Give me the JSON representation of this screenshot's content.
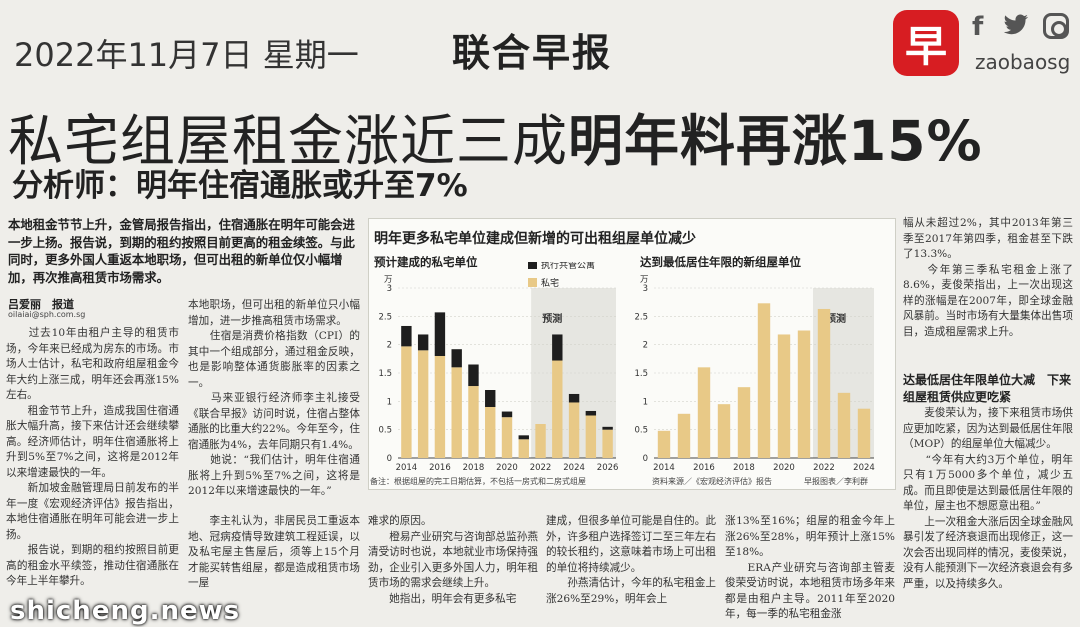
{
  "masthead": {
    "date": "2022年11月7日 星期一",
    "paper_name": "联合早报",
    "logo_char": "早",
    "handle": "zaobaosg",
    "social_icons": [
      "facebook-icon",
      "twitter-icon",
      "instagram-icon"
    ]
  },
  "headline": {
    "part1": "私宅组屋租金涨近三成",
    "part2": "明年料再涨15%",
    "subhead": "分析师：明年住宿通胀或升至7%"
  },
  "article": {
    "lead": "本地租金节节上升，金管局报告指出，住宿通胀在明年可能会进一步上扬。报告说，到期的租约按照目前更高的租金续签。与此同时，更多外国人重返本地职场，但可出租的新单位仅小幅增加，再次推高租赁市场需求。",
    "byline": "吕爱丽　报道",
    "email": "oilaiai@sph.com.sg",
    "col1": "　　过去10年由租户主导的租赁市场，今年来已经成为房东的市场。市场人士估计，私宅和政府组屋租金今年大约上涨三成，明年还会再涨15%左右。\n　　租金节节上升，造成我国住宿通胀大幅升高，接下来估计还会继续攀高。经济师估计，明年住宿通胀将上升到5%至7%之间，这将是2012年以来增速最快的一年。\n　　新加坡金融管理局日前发布的半年一度《宏观经济评估》报告指出，本地住宿通胀在明年可能会进一步上扬。\n　　报告说，到期的租约按照目前更高的租金水平续签，推动住宿通胀在今年上半年攀升。",
    "col2": "本地职场，但可出租的新单位只小幅增加，进一步推高租赁市场需求。\n　　住宿是消费价格指数（CPI）的其中一个组成部分，通过租金反映，也是影响整体通货膨胀率的因素之一。\n　　马来亚银行经济师李主礼接受《联合早报》访问时说，住宿占整体通胀的比重大约22%。今年至今，住宿通胀为4%，去年同期只有1.4%。\n　　她说：“我们估计，明年住宿通胀将上升到5%至7%之间，这将是2012年以来增速最快的一年。”",
    "col2b": "　　李主礼认为，非居民员工重返本地、冠病疫情导致建筑工程延误，以及私宅屋主售屋后，须等上15个月才能买转售组屋，都是造成租赁市场一屋",
    "col3": "难求的原因。\n　　橙易产业研究与咨询部总监孙燕清受访时也说，本地就业市场保持强劲，企业引入更多外国人力，明年租赁市场的需求会继续上升。\n　　她指出，明年会有更多私宅",
    "col4": "建成，但很多单位可能是自住的。此外，许多租户选择签订二至三年左右的较长租约，这意味着市场上可出租的单位将持续减少。\n　　孙燕清估计，今年的私宅租金上涨26%至29%，明年会上",
    "col5": "涨13%至16%；组屋的租金今年上涨26%至28%，明年预计上涨15%至18%。\n　　ERA产业研究与咨询部主管麦俊荣受访时说，本地租赁市场多年来都是由租户主导。2011年至2020年，每一季的私宅租金涨",
    "col6a": "幅从未超过2%，其中2013年第三季至2017年第四季，租金甚至下跌了13.3%。\n　　今年第三季私宅租金上涨了8.6%，麦俊荣指出，上一次出现这样的涨幅是在2007年，即全球金融风暴前。当时市场有大量集体出售项目，造成租屋需求上升。",
    "col6_heading": "达最低居住年限单位大减　下来组屋租赁供应更吃紧",
    "col6b": "　　麦俊荣认为，接下来租赁市场供应更加吃紧，因为达到最低居住年限（MOP）的组屋单位大幅减少。\n　　“今年有大约3万个单位，明年只有1万5000多个单位，减少五成。而且即使是达到最低居住年限的单位，屋主也不想愿意出租。”\n　　上一次租金大涨后因全球金融风暴引发了经济衰退而出现修正，这一次会否出现同样的情况，麦俊荣说，没有人能预测下一次经济衰退会有多严重，以及持续多久。"
  },
  "chart": {
    "title": "明年更多私宅单位建成但新增的可出租组屋单位减少",
    "note_left": "备注：根据组屋的完工日期估算，不包括一房式和二房式组屋",
    "source": "资料来源／《宏观经济评估》报告",
    "credit": "早报图表／李利群"
  },
  "chart_data": [
    {
      "type": "bar",
      "title": "预计建成的私宅单位",
      "ylabel_unit": "万",
      "ylim": [
        0,
        3
      ],
      "yticks": [
        0,
        0.5,
        1,
        1.5,
        2,
        2.5,
        3
      ],
      "xtick_labels": [
        "2014",
        "2016",
        "2018",
        "2020",
        "2022",
        "2024",
        "2026"
      ],
      "forecast_label": "预测",
      "forecast_from": "2022",
      "categories": [
        "2014",
        "2015",
        "2016",
        "2017",
        "2018",
        "2019",
        "2020",
        "2021",
        "2022",
        "2023",
        "2024",
        "2025",
        "2026"
      ],
      "series": [
        {
          "name": "私宅",
          "color": "#e8c987",
          "values": [
            1.97,
            1.9,
            1.8,
            1.6,
            1.27,
            0.9,
            0.72,
            0.33,
            0.6,
            1.72,
            0.98,
            0.75,
            0.5
          ]
        },
        {
          "name": "执行共管公寓",
          "color": "#1e1e1e",
          "values": [
            0.36,
            0.28,
            0.77,
            0.32,
            0.38,
            0.3,
            0.1,
            0.07,
            0.0,
            0.46,
            0.15,
            0.08,
            0.05
          ]
        }
      ]
    },
    {
      "type": "bar",
      "title": "达到最低居住年限的新组屋单位",
      "ylabel_unit": "万",
      "ylim": [
        0,
        3
      ],
      "yticks": [
        0,
        0.5,
        1,
        1.5,
        2,
        2.5,
        3
      ],
      "xtick_labels": [
        "2014",
        "2016",
        "2018",
        "2020",
        "2022",
        "2024"
      ],
      "forecast_label": "预测",
      "forecast_from": "2022",
      "categories": [
        "2014",
        "2015",
        "2016",
        "2017",
        "2018",
        "2019",
        "2020",
        "2021",
        "2022",
        "2023",
        "2024"
      ],
      "series": [
        {
          "name": "组屋",
          "color": "#e8c987",
          "values": [
            0.48,
            0.78,
            1.6,
            0.95,
            1.25,
            2.73,
            2.18,
            2.25,
            2.63,
            1.15,
            0.87
          ]
        }
      ]
    }
  ],
  "watermark": "shicheng.news"
}
